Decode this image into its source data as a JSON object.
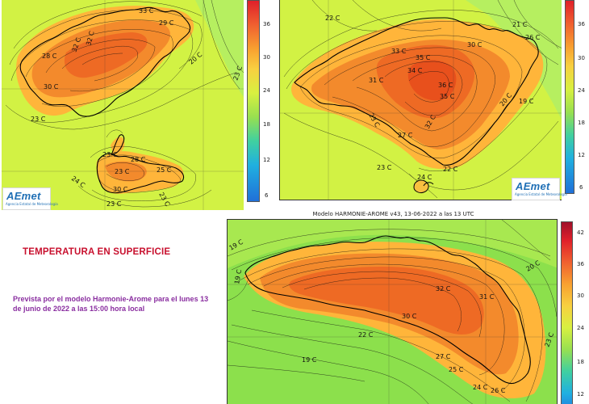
{
  "title": "TEMPERATURA  EN SUPERFICIE",
  "subtitle": "Prevista por el modelo Harmonie-Arome para el lunes 13 de junio de 2022 a las 15:00 hora local",
  "model_title": "Modelo HARMONIE-AROME v43, 13-06-2022 a las 13 UTC",
  "logo": {
    "text": "AEmet",
    "subtext": "Agencia Estatal de Meteorología"
  },
  "colorbar_ticks": {
    "top_left": [
      "36",
      "30",
      "24",
      "18",
      "12",
      "6"
    ],
    "top_right": [
      "36",
      "30",
      "24",
      "18",
      "12",
      "6"
    ],
    "bottom": [
      "42",
      "36",
      "30",
      "24",
      "18",
      "12"
    ]
  },
  "colors": {
    "sea": "#d2f244",
    "warm_land": "#f08a2c",
    "hot_core": "#ee5a20",
    "green_sea": "#8ce04c"
  },
  "contour_labels": {
    "pitiusas": [
      "33 C",
      "29 C",
      "32 C",
      "32 C",
      "28 C",
      "20 C",
      "23 C",
      "30 C",
      "23 C",
      "23 C",
      "23 C",
      "30 C",
      "25 C",
      "24 C",
      "28 C",
      "23 C",
      "23 C"
    ],
    "mallorca": [
      "22 C",
      "21 C",
      "26 C",
      "30 C",
      "33 C",
      "35 C",
      "34 C",
      "31 C",
      "36 C",
      "35 C",
      "19 C",
      "20 C",
      "23 C",
      "27 C",
      "32 C",
      "22 C",
      "23 C",
      "24 C"
    ],
    "menorca": [
      "19 C",
      "19 C",
      "20 C",
      "32 C",
      "31 C",
      "30 C",
      "22 C",
      "19 C",
      "27 C",
      "25 C",
      "23 C",
      "24 C",
      "26 C"
    ]
  }
}
